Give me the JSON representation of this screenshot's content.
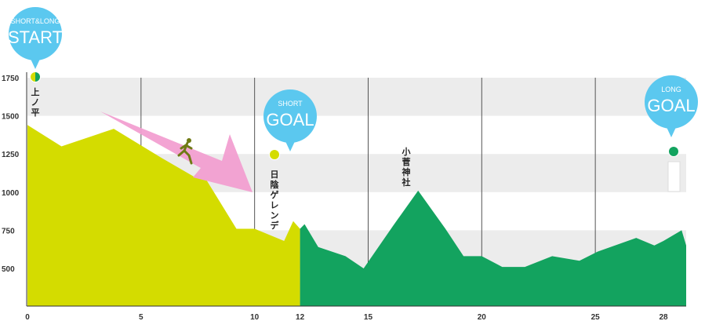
{
  "chart_data": {
    "type": "area",
    "title": "",
    "xlabel": "",
    "ylabel": "",
    "xlim": [
      0,
      29
    ],
    "ylim": [
      250,
      1800
    ],
    "x_ticks": [
      0,
      5,
      10,
      12,
      15,
      20,
      25,
      28
    ],
    "x_tick_labels": [
      "0",
      "5",
      "10",
      "12",
      "15",
      "20",
      "25",
      "28"
    ],
    "y_ticks": [
      500,
      750,
      1000,
      1250,
      1500,
      1750
    ],
    "y_tick_labels": [
      "500",
      "750",
      "1000",
      "1250",
      "1500",
      "1750"
    ],
    "grid": "vertical lines at 5, 10, 15, 20, 25 with alternating horizontal bands",
    "series": [
      {
        "color": "#d4dc00",
        "x": [
          0,
          1.5,
          3.8,
          5.9,
          7.4,
          7.9,
          9.2,
          10.0,
          11.3,
          11.7,
          12.0
        ],
        "elevation": [
          1440,
          1300,
          1415,
          1225,
          1095,
          1075,
          760,
          760,
          680,
          810,
          760
        ]
      },
      {
        "color": "#13a35f",
        "x": [
          12.0,
          12.2,
          12.8,
          14.0,
          14.8,
          16.1,
          17.2,
          18.4,
          19.2,
          20.0,
          20.9,
          21.9,
          23.1,
          24.3,
          25.1,
          26.8,
          27.6,
          28.0,
          28.8,
          29.0
        ],
        "elevation": [
          760,
          790,
          640,
          580,
          500,
          780,
          1010,
          760,
          580,
          580,
          510,
          510,
          580,
          550,
          610,
          700,
          650,
          680,
          750,
          650
        ]
      }
    ],
    "markers": [
      {
        "id": "start",
        "x": 0.4,
        "elevation": 1740,
        "label_top": "SHORT&LONG",
        "label_main": "START",
        "place": "上ノ平",
        "color": "#5bc8ef"
      },
      {
        "id": "short-goal",
        "x": 11.0,
        "elevation": 1240,
        "label_top": "SHORT",
        "label_main": "GOAL",
        "place": "日陰ゲレンデ",
        "color": "#5bc8ef"
      },
      {
        "id": "long-goal",
        "x": 28.0,
        "elevation": 1265,
        "label_top": "LONG",
        "label_main": "GOAL",
        "place": "",
        "color": "#5bc8ef"
      }
    ],
    "places": [
      {
        "x": 16.8,
        "elevation": 1250,
        "name": "小菅神社"
      }
    ],
    "colors": {
      "short_course": "#d4dc00",
      "long_course": "#13a35f",
      "balloon": "#5bc8ef",
      "arrow": "#f29fd1",
      "band": "#ececec",
      "grid": "#555555"
    }
  }
}
